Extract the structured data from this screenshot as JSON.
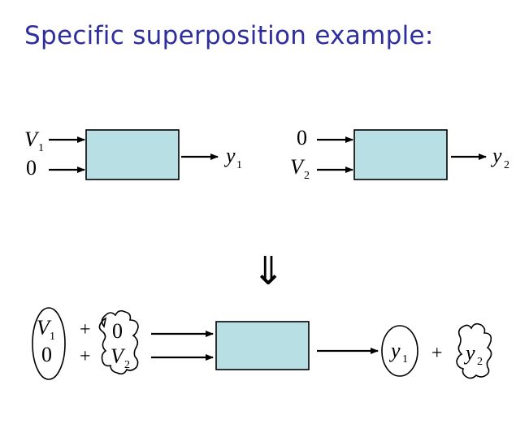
{
  "title": "Specific superposition example:",
  "system1": {
    "input_top": "V",
    "input_top_sub": "1",
    "input_bottom": "0",
    "output": "y",
    "output_sub": "1"
  },
  "system2": {
    "input_top": "0",
    "input_bottom": "V",
    "input_bottom_sub": "2",
    "output": "y",
    "output_sub": "2"
  },
  "implies_symbol": "⇓",
  "combined": {
    "left_group_top": "V",
    "left_group_top_sub": "1",
    "left_group_bottom": "0",
    "plus": "+",
    "right_group_top": "0",
    "right_group_bottom": "V",
    "right_group_bottom_sub": "2",
    "output_left": "y",
    "output_left_sub": "1",
    "output_right": "y",
    "output_right_sub": "2"
  },
  "colors": {
    "title": "#2e2e9e",
    "box_fill": "#b8e0e4"
  }
}
